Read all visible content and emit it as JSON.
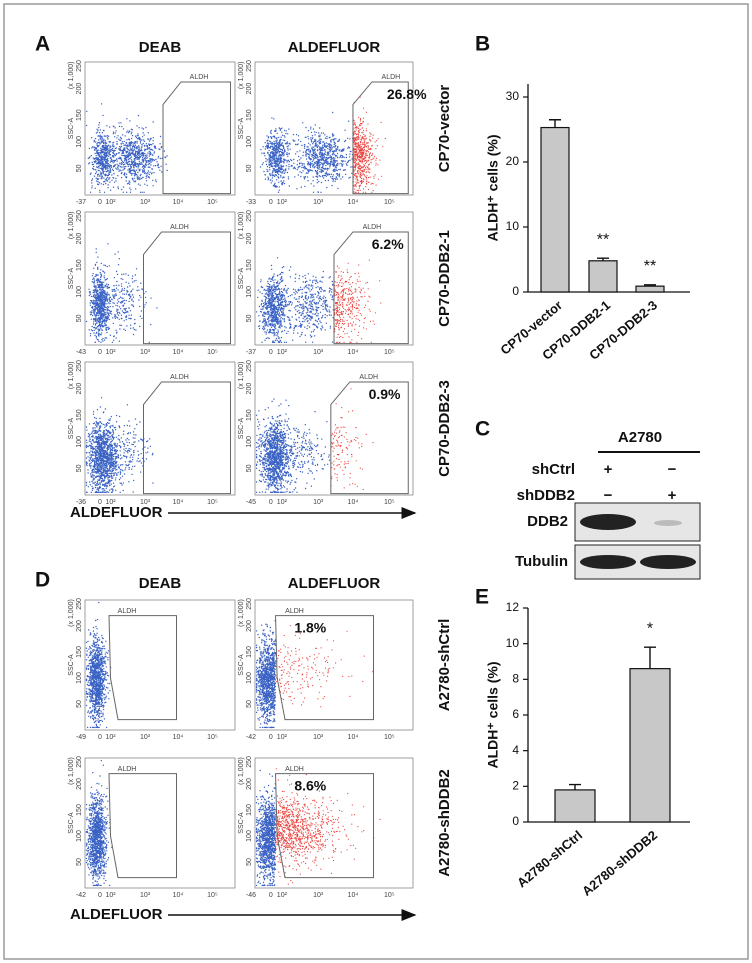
{
  "flow_axis": {
    "yticks": [
      "50",
      "100",
      "150",
      "200",
      "250"
    ],
    "yunit": "(x 1,000)",
    "ylabel": "SSC-A",
    "xticks": [
      "0",
      "10²",
      "10³",
      "10⁴",
      "10⁵"
    ]
  },
  "panel_a": {
    "label": "A",
    "columns": [
      "DEAB",
      "ALDEFLUOR"
    ],
    "x_axis_label": "ALDEFLUOR",
    "rows": [
      {
        "name": "CP70-vector",
        "plots": [
          {
            "gate": "ALDH",
            "xmin": "-37"
          },
          {
            "gate": "ALDH",
            "xmin": "-33",
            "percent": "26.8%"
          }
        ]
      },
      {
        "name": "CP70-DDB2-1",
        "plots": [
          {
            "gate": "ALDH",
            "xmin": "-43"
          },
          {
            "gate": "ALDH",
            "xmin": "-37",
            "percent": "6.2%"
          }
        ]
      },
      {
        "name": "CP70-DDB2-3",
        "plots": [
          {
            "gate": "ALDH",
            "xmin": "-36"
          },
          {
            "gate": "ALDH",
            "xmin": "-45",
            "percent": "0.9%"
          }
        ]
      }
    ]
  },
  "panel_d": {
    "label": "D",
    "columns": [
      "DEAB",
      "ALDEFLUOR"
    ],
    "x_axis_label": "ALDEFLUOR",
    "rows": [
      {
        "name": "A2780-shCtrl",
        "plots": [
          {
            "gate": "ALDH",
            "xmin": "-49"
          },
          {
            "gate": "ALDH",
            "xmin": "-42",
            "percent": "1.8%"
          }
        ]
      },
      {
        "name": "A2780-shDDB2",
        "plots": [
          {
            "gate": "ALDH",
            "xmin": "-42"
          },
          {
            "gate": "ALDH",
            "xmin": "-46",
            "percent": "8.6%"
          }
        ]
      }
    ]
  },
  "panel_c": {
    "label": "C",
    "cell_line": "A2780",
    "rows": [
      {
        "name": "shCtrl",
        "signs": [
          "+",
          "−"
        ]
      },
      {
        "name": "shDDB2",
        "signs": [
          "−",
          "+"
        ]
      }
    ],
    "blots": [
      "DDB2",
      "Tubulin"
    ]
  },
  "chart_data": [
    {
      "type": "bar",
      "panel_label": "B",
      "ylabel": "ALDH⁺ cells (%)",
      "categories": [
        "CP70-vector",
        "CP70-DDB2-1",
        "CP70-DDB2-3"
      ],
      "values": [
        25.3,
        4.8,
        0.9
      ],
      "errors": [
        1.2,
        0.4,
        0.2
      ],
      "significance": [
        null,
        "**",
        "**"
      ],
      "color": "#c8c8c8",
      "ylim": [
        0,
        32
      ],
      "yticks": [
        0,
        10,
        20,
        30
      ]
    },
    {
      "type": "bar",
      "panel_label": "E",
      "ylabel": "ALDH⁺ cells (%)",
      "categories": [
        "A2780-shCtrl",
        "A2780-shDDB2"
      ],
      "values": [
        1.8,
        8.6
      ],
      "errors": [
        0.3,
        1.2
      ],
      "significance": [
        null,
        "*"
      ],
      "color": "#c8c8c8",
      "ylim": [
        0,
        12
      ],
      "yticks": [
        0,
        2,
        4,
        6,
        8,
        10,
        12
      ]
    }
  ]
}
